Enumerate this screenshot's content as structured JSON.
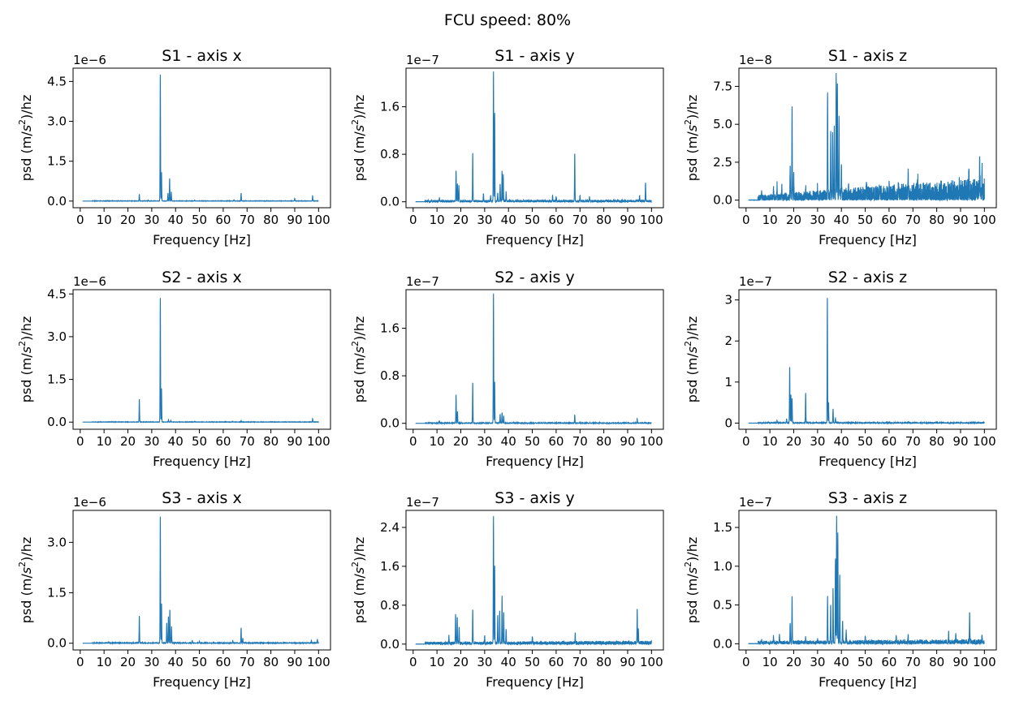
{
  "figure": {
    "title": "FCU speed: 80%"
  },
  "chart_data": [
    {
      "type": "line",
      "title": "S1 - axis x",
      "xlabel": "Frequency [Hz]",
      "ylabel_pre": "psd (m/",
      "ylabel_sym": "s",
      "ylabel_exp": "2",
      "ylabel_post": ")/hz",
      "offset_label": "1e−6",
      "xlim": [
        -3,
        105
      ],
      "ylim": [
        -0.25,
        5.0
      ],
      "xticks": [
        0,
        10,
        20,
        30,
        40,
        50,
        60,
        70,
        80,
        90,
        100
      ],
      "xtick_labels": [
        "0",
        "10",
        "20",
        "30",
        "40",
        "50",
        "60",
        "70",
        "80",
        "90",
        "100"
      ],
      "yticks": [
        0,
        1.5,
        3.0,
        4.5
      ],
      "ytick_labels": [
        "0.0",
        "1.5",
        "3.0",
        "4.5"
      ],
      "noise": 0.01,
      "noise_rise": 0.0,
      "peaks": [
        [
          24.8,
          0.25
        ],
        [
          28.5,
          0.03
        ],
        [
          33.6,
          4.8
        ],
        [
          34.1,
          1.1
        ],
        [
          36.8,
          0.3
        ],
        [
          37.5,
          0.85
        ],
        [
          38.2,
          0.35
        ],
        [
          48,
          0.03
        ],
        [
          64.5,
          0.05
        ],
        [
          67.5,
          0.3
        ],
        [
          90,
          0.1
        ],
        [
          97.5,
          0.2
        ]
      ],
      "series": [
        {
          "color": "#1f77b4"
        }
      ]
    },
    {
      "type": "line",
      "title": "S1 - axis y",
      "xlabel": "Frequency [Hz]",
      "ylabel_pre": "psd (m/",
      "ylabel_sym": "s",
      "ylabel_exp": "2",
      "ylabel_post": ")/hz",
      "offset_label": "1e−7",
      "xlim": [
        -3,
        105
      ],
      "ylim": [
        -0.1,
        2.25
      ],
      "xticks": [
        0,
        10,
        20,
        30,
        40,
        50,
        60,
        70,
        80,
        90,
        100
      ],
      "xtick_labels": [
        "0",
        "10",
        "20",
        "30",
        "40",
        "50",
        "60",
        "70",
        "80",
        "90",
        "100"
      ],
      "yticks": [
        0,
        0.8,
        1.6
      ],
      "ytick_labels": [
        "0.0",
        "0.8",
        "1.6"
      ],
      "noise": 0.03,
      "noise_rise": 0.02,
      "peaks": [
        [
          11,
          0.05
        ],
        [
          18,
          0.52
        ],
        [
          18.6,
          0.3
        ],
        [
          19.2,
          0.25
        ],
        [
          25,
          0.8
        ],
        [
          29.5,
          0.12
        ],
        [
          32.5,
          0.08
        ],
        [
          33.7,
          2.2
        ],
        [
          34.2,
          1.5
        ],
        [
          35.5,
          0.15
        ],
        [
          36.5,
          0.3
        ],
        [
          37.3,
          0.52
        ],
        [
          37.8,
          0.45
        ],
        [
          39,
          0.15
        ],
        [
          58.5,
          0.1
        ],
        [
          60,
          0.08
        ],
        [
          67.8,
          0.8
        ],
        [
          70,
          0.1
        ],
        [
          74,
          0.06
        ],
        [
          95,
          0.1
        ],
        [
          97.5,
          0.32
        ]
      ],
      "series": [
        {
          "color": "#1f77b4"
        }
      ]
    },
    {
      "type": "line",
      "title": "S1 - axis z",
      "xlabel": "Frequency [Hz]",
      "ylabel_pre": "psd (m/",
      "ylabel_sym": "s",
      "ylabel_exp": "2",
      "ylabel_post": ")/hz",
      "offset_label": "1e−8",
      "xlim": [
        -3,
        105
      ],
      "ylim": [
        -0.5,
        8.7
      ],
      "xticks": [
        0,
        10,
        20,
        30,
        40,
        50,
        60,
        70,
        80,
        90,
        100
      ],
      "xtick_labels": [
        "0",
        "10",
        "20",
        "30",
        "40",
        "50",
        "60",
        "70",
        "80",
        "90",
        "100"
      ],
      "yticks": [
        0,
        2.5,
        5.0,
        7.5
      ],
      "ytick_labels": [
        "0.0",
        "2.5",
        "5.0",
        "7.5"
      ],
      "noise": 0.35,
      "noise_rise": 0.35,
      "peaks": [
        [
          6.5,
          0.55
        ],
        [
          11.5,
          0.7
        ],
        [
          13,
          0.8
        ],
        [
          15,
          0.75
        ],
        [
          18.5,
          2.0
        ],
        [
          19.3,
          5.9
        ],
        [
          20,
          1.5
        ],
        [
          25,
          0.7
        ],
        [
          30,
          0.6
        ],
        [
          34.2,
          7.1
        ],
        [
          35.5,
          4.3
        ],
        [
          36.3,
          4.5
        ],
        [
          37,
          4.6
        ],
        [
          37.8,
          8.3
        ],
        [
          38.3,
          7.5
        ],
        [
          39,
          5.5
        ],
        [
          40,
          2.0
        ],
        [
          43,
          0.9
        ],
        [
          50.5,
          1.2
        ],
        [
          56,
          0.8
        ],
        [
          60,
          0.8
        ],
        [
          64,
          0.9
        ],
        [
          68,
          1.5
        ],
        [
          72,
          0.8
        ],
        [
          85,
          0.7
        ],
        [
          89.5,
          0.9
        ],
        [
          93.5,
          1.2
        ],
        [
          98,
          1.7
        ],
        [
          99,
          1.3
        ]
      ],
      "series": [
        {
          "color": "#1f77b4"
        }
      ]
    },
    {
      "type": "line",
      "title": "S2 - axis x",
      "xlabel": "Frequency [Hz]",
      "ylabel_pre": "psd (m/",
      "ylabel_sym": "s",
      "ylabel_exp": "2",
      "ylabel_post": ")/hz",
      "offset_label": "1e−6",
      "xlim": [
        -3,
        105
      ],
      "ylim": [
        -0.25,
        4.65
      ],
      "xticks": [
        0,
        10,
        20,
        30,
        40,
        50,
        60,
        70,
        80,
        90,
        100
      ],
      "xtick_labels": [
        "0",
        "10",
        "20",
        "30",
        "40",
        "50",
        "60",
        "70",
        "80",
        "90",
        "100"
      ],
      "yticks": [
        0,
        1.5,
        3.0,
        4.5
      ],
      "ytick_labels": [
        "0.0",
        "1.5",
        "3.0",
        "4.5"
      ],
      "noise": 0.01,
      "noise_rise": 0.0,
      "peaks": [
        [
          24.8,
          0.8
        ],
        [
          33.6,
          4.4
        ],
        [
          34.1,
          1.2
        ],
        [
          37,
          0.08
        ],
        [
          38,
          0.06
        ],
        [
          48,
          0.03
        ],
        [
          64,
          0.03
        ],
        [
          67.5,
          0.05
        ],
        [
          97.5,
          0.12
        ]
      ],
      "series": [
        {
          "color": "#1f77b4"
        }
      ]
    },
    {
      "type": "line",
      "title": "S2 - axis y",
      "xlabel": "Frequency [Hz]",
      "ylabel_pre": "psd (m/",
      "ylabel_sym": "s",
      "ylabel_exp": "2",
      "ylabel_post": ")/hz",
      "offset_label": "1e−7",
      "xlim": [
        -3,
        105
      ],
      "ylim": [
        -0.1,
        2.25
      ],
      "xticks": [
        0,
        10,
        20,
        30,
        40,
        50,
        60,
        70,
        80,
        90,
        100
      ],
      "xtick_labels": [
        "0",
        "10",
        "20",
        "30",
        "40",
        "50",
        "60",
        "70",
        "80",
        "90",
        "100"
      ],
      "yticks": [
        0,
        0.8,
        1.6
      ],
      "ytick_labels": [
        "0.0",
        "0.8",
        "1.6"
      ],
      "noise": 0.012,
      "noise_rise": 0.0,
      "peaks": [
        [
          11,
          0.04
        ],
        [
          18,
          0.48
        ],
        [
          18.6,
          0.2
        ],
        [
          25,
          0.68
        ],
        [
          33.7,
          2.2
        ],
        [
          34.2,
          0.7
        ],
        [
          36.5,
          0.15
        ],
        [
          37.3,
          0.18
        ],
        [
          38,
          0.12
        ],
        [
          67.8,
          0.14
        ],
        [
          94,
          0.07
        ]
      ],
      "series": [
        {
          "color": "#1f77b4"
        }
      ]
    },
    {
      "type": "line",
      "title": "S2 - axis z",
      "xlabel": "Frequency [Hz]",
      "ylabel_pre": "psd (m/",
      "ylabel_sym": "s",
      "ylabel_exp": "2",
      "ylabel_post": ")/hz",
      "offset_label": "1e−7",
      "xlim": [
        -3,
        105
      ],
      "ylim": [
        -0.15,
        3.25
      ],
      "xticks": [
        0,
        10,
        20,
        30,
        40,
        50,
        60,
        70,
        80,
        90,
        100
      ],
      "xtick_labels": [
        "0",
        "10",
        "20",
        "30",
        "40",
        "50",
        "60",
        "70",
        "80",
        "90",
        "100"
      ],
      "yticks": [
        0,
        1,
        2,
        3
      ],
      "ytick_labels": [
        "0",
        "1",
        "2",
        "3"
      ],
      "noise": 0.02,
      "noise_rise": 0.0,
      "peaks": [
        [
          13,
          0.05
        ],
        [
          17,
          0.1
        ],
        [
          18.3,
          1.38
        ],
        [
          18.8,
          0.7
        ],
        [
          19.3,
          0.6
        ],
        [
          25,
          0.72
        ],
        [
          34.1,
          3.1
        ],
        [
          34.6,
          0.5
        ],
        [
          36.5,
          0.35
        ],
        [
          37.5,
          0.12
        ],
        [
          68,
          0.03
        ]
      ],
      "series": [
        {
          "color": "#1f77b4"
        }
      ]
    },
    {
      "type": "line",
      "title": "S3 - axis x",
      "xlabel": "Frequency [Hz]",
      "ylabel_pre": "psd (m/",
      "ylabel_sym": "s",
      "ylabel_exp": "2",
      "ylabel_post": ")/hz",
      "offset_label": "1e−6",
      "xlim": [
        -3,
        105
      ],
      "ylim": [
        -0.2,
        3.95
      ],
      "xticks": [
        0,
        10,
        20,
        30,
        40,
        50,
        60,
        70,
        80,
        90,
        100
      ],
      "xtick_labels": [
        "0",
        "10",
        "20",
        "30",
        "40",
        "50",
        "60",
        "70",
        "80",
        "90",
        "100"
      ],
      "yticks": [
        0,
        1.5,
        3.0
      ],
      "ytick_labels": [
        "0.0",
        "1.5",
        "3.0"
      ],
      "noise": 0.015,
      "noise_rise": 0.02,
      "peaks": [
        [
          12,
          0.03
        ],
        [
          24.8,
          0.8
        ],
        [
          33.6,
          3.8
        ],
        [
          34.1,
          1.2
        ],
        [
          36.3,
          0.6
        ],
        [
          37,
          0.8
        ],
        [
          37.6,
          1.0
        ],
        [
          38.3,
          0.5
        ],
        [
          47,
          0.08
        ],
        [
          50,
          0.06
        ],
        [
          64,
          0.08
        ],
        [
          67.5,
          0.45
        ],
        [
          68.2,
          0.15
        ],
        [
          97,
          0.08
        ],
        [
          99.5,
          0.12
        ]
      ],
      "series": [
        {
          "color": "#1f77b4"
        }
      ]
    },
    {
      "type": "line",
      "title": "S3 - axis y",
      "xlabel": "Frequency [Hz]",
      "ylabel_pre": "psd (m/",
      "ylabel_sym": "s",
      "ylabel_exp": "2",
      "ylabel_post": ")/hz",
      "offset_label": "1e−7",
      "xlim": [
        -3,
        105
      ],
      "ylim": [
        -0.12,
        2.75
      ],
      "xticks": [
        0,
        10,
        20,
        30,
        40,
        50,
        60,
        70,
        80,
        90,
        100
      ],
      "xtick_labels": [
        "0",
        "10",
        "20",
        "30",
        "40",
        "50",
        "60",
        "70",
        "80",
        "90",
        "100"
      ],
      "yticks": [
        0,
        0.8,
        1.6,
        2.4
      ],
      "ytick_labels": [
        "0.0",
        "0.8",
        "1.6",
        "2.4"
      ],
      "noise": 0.05,
      "noise_rise": 0.04,
      "peaks": [
        [
          15,
          0.15
        ],
        [
          17.8,
          0.62
        ],
        [
          18.5,
          0.55
        ],
        [
          19.3,
          0.35
        ],
        [
          25,
          0.7
        ],
        [
          30,
          0.15
        ],
        [
          33.7,
          2.65
        ],
        [
          34.2,
          1.6
        ],
        [
          35.5,
          0.6
        ],
        [
          36.3,
          0.65
        ],
        [
          37.3,
          0.95
        ],
        [
          38,
          0.65
        ],
        [
          39,
          0.3
        ],
        [
          50,
          0.15
        ],
        [
          68,
          0.2
        ],
        [
          94,
          0.68
        ],
        [
          94.5,
          0.3
        ]
      ],
      "series": [
        {
          "color": "#1f77b4"
        }
      ]
    },
    {
      "type": "line",
      "title": "S3 - axis z",
      "xlabel": "Frequency [Hz]",
      "ylabel_pre": "psd (m/",
      "ylabel_sym": "s",
      "ylabel_exp": "2",
      "ylabel_post": ")/hz",
      "offset_label": "1e−7",
      "xlim": [
        -3,
        105
      ],
      "ylim": [
        -0.08,
        1.72
      ],
      "xticks": [
        0,
        10,
        20,
        30,
        40,
        50,
        60,
        70,
        80,
        90,
        100
      ],
      "xtick_labels": [
        "0",
        "10",
        "20",
        "30",
        "40",
        "50",
        "60",
        "70",
        "80",
        "90",
        "100"
      ],
      "yticks": [
        0,
        0.5,
        1.0,
        1.5
      ],
      "ytick_labels": [
        "0.0",
        "0.5",
        "1.0",
        "1.5"
      ],
      "noise": 0.04,
      "noise_rise": 0.05,
      "peaks": [
        [
          6.5,
          0.05
        ],
        [
          11.5,
          0.08
        ],
        [
          14,
          0.1
        ],
        [
          18.5,
          0.25
        ],
        [
          19.3,
          0.6
        ],
        [
          25,
          0.06
        ],
        [
          30,
          0.05
        ],
        [
          34.2,
          0.6
        ],
        [
          35.5,
          0.5
        ],
        [
          36.5,
          0.7
        ],
        [
          37.5,
          1.1
        ],
        [
          38,
          1.65
        ],
        [
          38.5,
          1.4
        ],
        [
          39.3,
          0.9
        ],
        [
          40.5,
          0.3
        ],
        [
          42,
          0.15
        ],
        [
          50,
          0.1
        ],
        [
          63,
          0.1
        ],
        [
          68,
          0.1
        ],
        [
          85,
          0.12
        ],
        [
          88,
          0.12
        ],
        [
          93.8,
          0.4
        ],
        [
          99,
          0.1
        ]
      ],
      "series": [
        {
          "color": "#1f77b4"
        }
      ]
    }
  ]
}
